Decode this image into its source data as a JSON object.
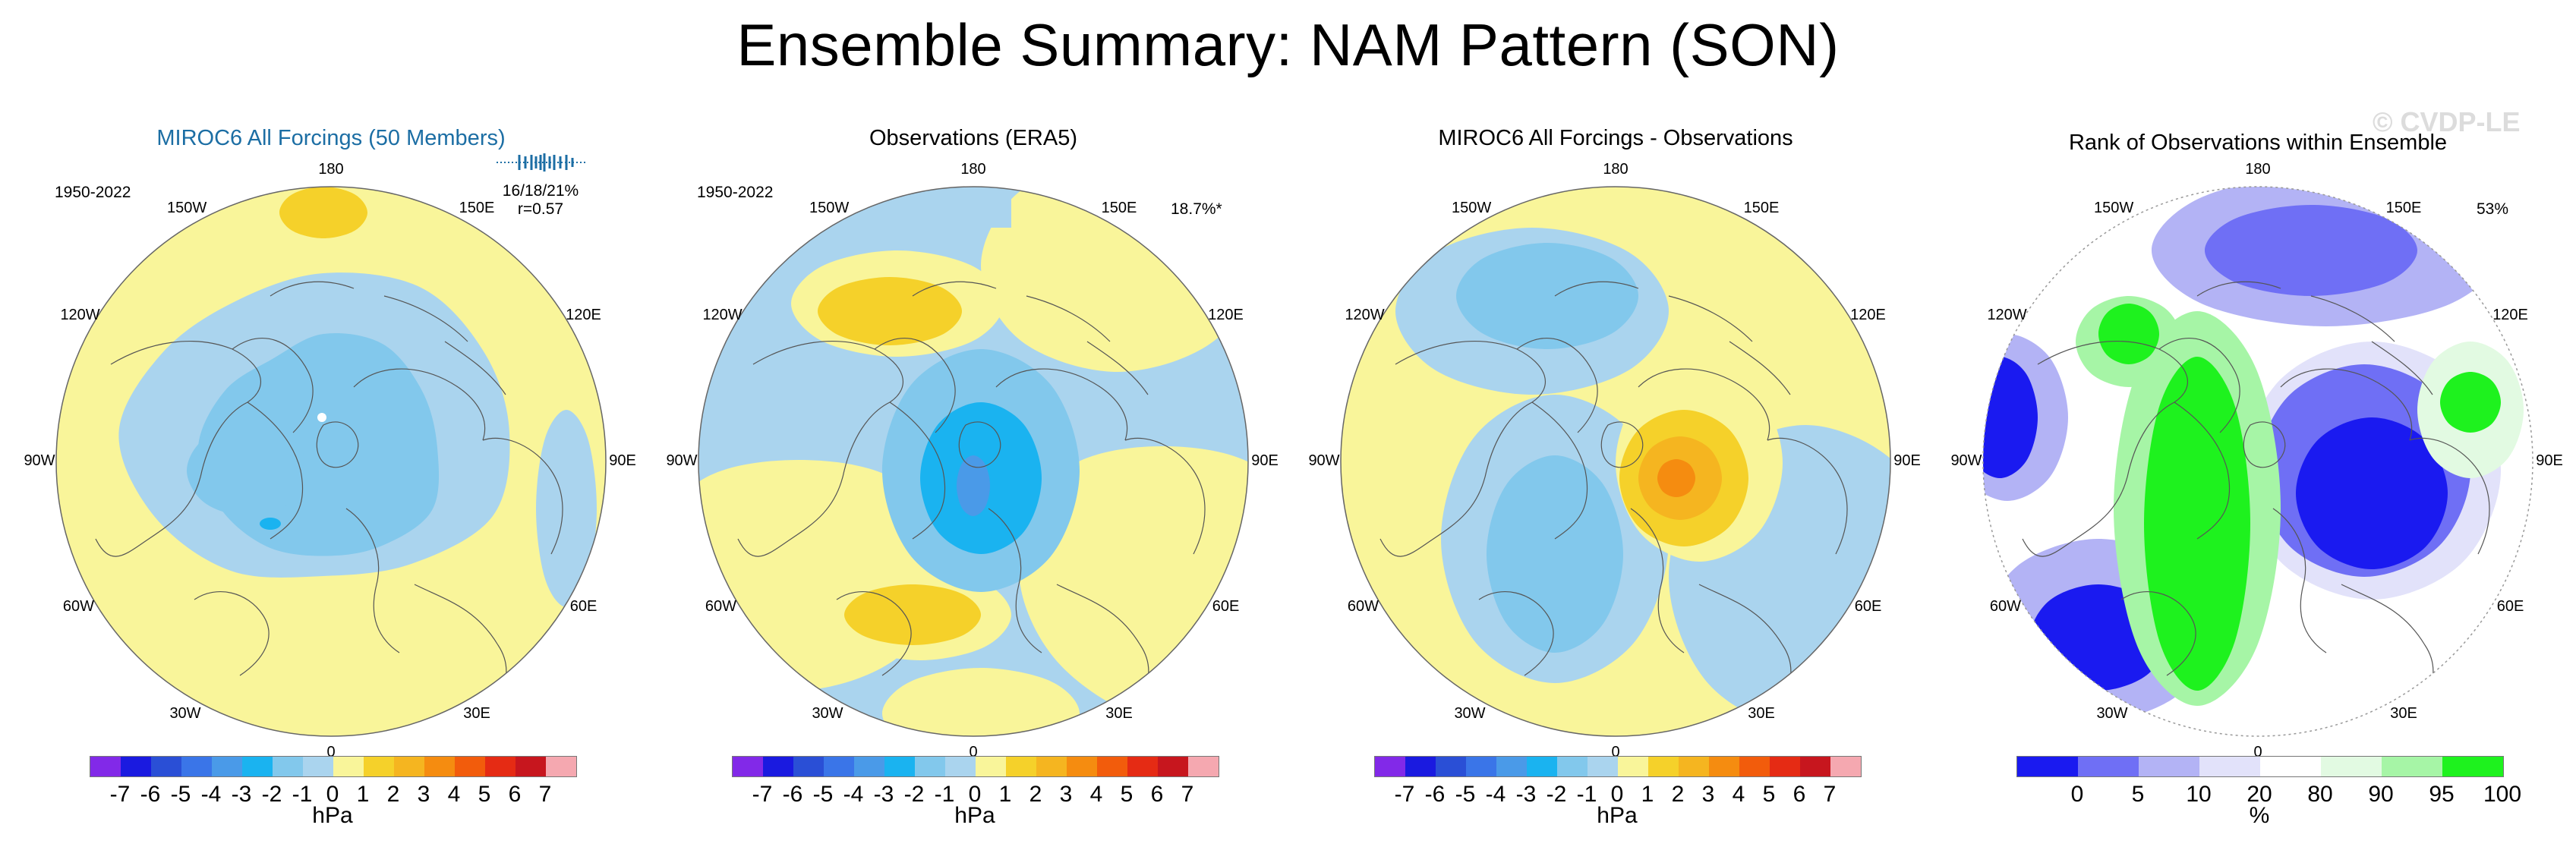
{
  "title": "Ensemble Summary: NAM Pattern (SON)",
  "watermark": "© CVDP-LE",
  "lon_labels": [
    "180",
    "150E",
    "120E",
    "90E",
    "60E",
    "30E",
    "0",
    "30W",
    "60W",
    "90W",
    "120W",
    "150W"
  ],
  "colors": {
    "diverging": [
      "#8229e8",
      "#1a1ae0",
      "#2a4fd6",
      "#3a75e8",
      "#4a9ae8",
      "#1ab3f0",
      "#82c8ec",
      "#aad4ee",
      "#f9f59a",
      "#f5d12a",
      "#f5b520",
      "#f58c10",
      "#f25c0c",
      "#e52b14",
      "#c7161e",
      "#f5a8b0"
    ],
    "rank": [
      "#1a1af0",
      "#6f6ff5",
      "#b3b3f5",
      "#e2e2fa",
      "#ffffff",
      "#e2fae2",
      "#a6f5a6",
      "#1ef21e"
    ],
    "land": "#ffffff"
  },
  "panels": [
    {
      "title": "MIROC6 All Forcings (50 Members)",
      "title_color": "#1c6ea4",
      "period": "1950-2022",
      "stats": "16/18/21%",
      "corr": "r=0.57",
      "colorbar": "diverging",
      "unit": "hPa"
    },
    {
      "title": "Observations (ERA5)",
      "period": "1950-2022",
      "pct": "18.7%*",
      "colorbar": "diverging",
      "unit": "hPa"
    },
    {
      "title": "MIROC6 All Forcings - Observations",
      "colorbar": "diverging",
      "unit": "hPa"
    },
    {
      "title": "Rank of Observations within Ensemble",
      "pct": "53%",
      "colorbar": "rank",
      "unit": "%"
    }
  ],
  "chart_data": [
    {
      "type": "heatmap",
      "title": "MIROC6 All Forcings (50 Members)",
      "projection": "north polar stereographic",
      "period": "1950-2022",
      "annotation": [
        "16/18/21%",
        "r=0.57"
      ],
      "colorbar": {
        "ticks": [
          "-7",
          "-6",
          "-5",
          "-4",
          "-3",
          "-2",
          "-1",
          "0",
          "1",
          "2",
          "3",
          "4",
          "5",
          "6",
          "7"
        ],
        "label": "hPa"
      },
      "features": [
        {
          "region": "Arctic center",
          "value_hpa": -3
        },
        {
          "region": "Arctic ring",
          "value_hpa": -1.5
        },
        {
          "region": "North Pacific",
          "value_hpa": 2
        },
        {
          "region": "midlatitudes",
          "value_hpa": 0.5
        }
      ]
    },
    {
      "type": "heatmap",
      "title": "Observations (ERA5)",
      "projection": "north polar stereographic",
      "period": "1950-2022",
      "annotation": [
        "18.7%*"
      ],
      "colorbar": {
        "ticks": [
          "-7",
          "-6",
          "-5",
          "-4",
          "-3",
          "-2",
          "-1",
          "0",
          "1",
          "2",
          "3",
          "4",
          "5",
          "6",
          "7"
        ],
        "label": "hPa"
      },
      "features": [
        {
          "region": "Arctic center",
          "value_hpa": -4
        },
        {
          "region": "Arctic ring",
          "value_hpa": -2
        },
        {
          "region": "North Pacific",
          "value_hpa": 2
        },
        {
          "region": "North Atlantic / Europe",
          "value_hpa": 2
        }
      ]
    },
    {
      "type": "heatmap",
      "title": "MIROC6 All Forcings - Observations",
      "projection": "north polar stereographic",
      "colorbar": {
        "ticks": [
          "-7",
          "-6",
          "-5",
          "-4",
          "-3",
          "-2",
          "-1",
          "0",
          "1",
          "2",
          "3",
          "4",
          "5",
          "6",
          "7"
        ],
        "label": "hPa"
      },
      "features": [
        {
          "region": "Central Arctic",
          "value_hpa": 2.5
        },
        {
          "region": "North America",
          "value_hpa": -2
        },
        {
          "region": "Eurasia",
          "value_hpa": -1.5
        }
      ]
    },
    {
      "type": "heatmap",
      "title": "Rank of Observations within Ensemble",
      "projection": "north polar stereographic",
      "annotation": [
        "53%"
      ],
      "colorbar": {
        "ticks": [
          "0",
          "5",
          "10",
          "20",
          "80",
          "90",
          "95",
          "100"
        ],
        "label": "%"
      },
      "features": [
        {
          "region": "Arctic center",
          "rank_pct": 2
        },
        {
          "region": "North Atlantic",
          "rank_pct": 98
        },
        {
          "region": "Alaska",
          "rank_pct": 97
        },
        {
          "region": "Eastern Siberia",
          "rank_pct": 5
        },
        {
          "region": "North Pacific",
          "rank_pct": 8
        }
      ]
    }
  ]
}
